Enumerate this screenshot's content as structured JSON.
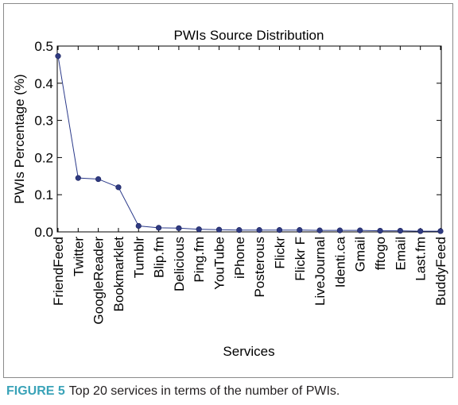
{
  "chart_data": {
    "type": "line",
    "title": "PWIs Source Distribution",
    "xlabel": "Services",
    "ylabel": "PWIs Percentage (%)",
    "ylim": [
      0,
      0.5
    ],
    "yticks": [
      "0.0",
      "0.1",
      "0.2",
      "0.3",
      "0.4",
      "0.5"
    ],
    "categories": [
      "FriendFeed",
      "Twitter",
      "GoogleReader",
      "Bookmarklet",
      "Tumblr",
      "Blip.fm",
      "Delicious",
      "Ping.fm",
      "YouTube",
      "iPhone",
      "Posterous",
      "Flickr",
      "Flickr F",
      "LiveJournal",
      "Identi.ca",
      "Gmail",
      "fftogo",
      "Email",
      "Last.fm",
      "BuddyFeed"
    ],
    "values": [
      0.473,
      0.145,
      0.142,
      0.12,
      0.016,
      0.011,
      0.01,
      0.007,
      0.006,
      0.005,
      0.005,
      0.005,
      0.005,
      0.004,
      0.004,
      0.004,
      0.003,
      0.003,
      0.002,
      0.002
    ],
    "line_color": "#2b3a8a",
    "marker_color": "#2f3a80",
    "grid": false
  },
  "caption": {
    "label": "FIGURE 5",
    "text": "Top 20 services in terms of the number of PWIs."
  }
}
